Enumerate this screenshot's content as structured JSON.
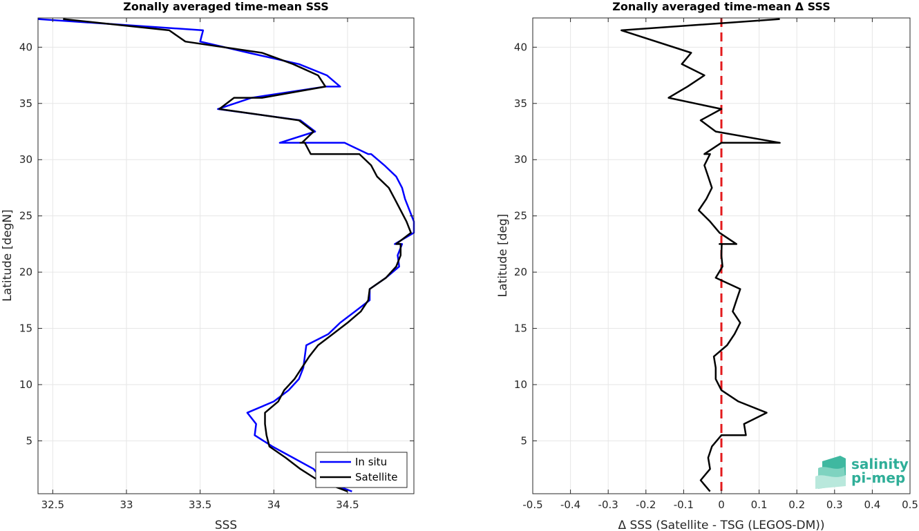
{
  "colors": {
    "in_situ": "#0000ff",
    "satellite": "#000000",
    "zero_line": "#e31a1c",
    "grid": "#e6e6e6",
    "logo": "#2fae98"
  },
  "logo": {
    "line1": "salinity",
    "line2": "pi-mep",
    "icon": "salinity-wave-logo-icon"
  },
  "chart_data": [
    {
      "type": "line",
      "title": "Zonally averaged time-mean SSS",
      "xlabel": "SSS",
      "ylabel": "Latitude [degN]",
      "xlim": [
        32.4,
        34.95
      ],
      "ylim": [
        0.3,
        42.6
      ],
      "xticks": [
        32.5,
        33,
        33.5,
        34,
        34.5
      ],
      "xticklabels": [
        "32.5",
        "33",
        "33.5",
        "34",
        "34.5"
      ],
      "yticks": [
        5,
        10,
        15,
        20,
        25,
        30,
        35,
        40
      ],
      "yticklabels": [
        "5",
        "10",
        "15",
        "20",
        "25",
        "30",
        "35",
        "40"
      ],
      "grid": true,
      "legend": {
        "location": "bottom-right",
        "entries": [
          "In situ",
          "Satellite"
        ]
      },
      "series": [
        {
          "name": "In situ",
          "x": [
            34.53,
            34.33,
            34.27,
            34.13,
            33.99,
            33.87,
            33.88,
            33.82,
            34.0,
            34.1,
            34.17,
            34.2,
            34.21,
            34.22,
            34.37,
            34.45,
            34.55,
            34.65,
            34.65,
            34.76,
            34.85,
            34.84,
            34.87,
            34.82,
            34.95,
            34.95,
            34.92,
            34.89,
            34.87,
            34.83,
            34.75,
            34.66,
            34.64,
            34.48,
            34.39,
            34.26,
            34.04,
            34.28,
            34.18,
            33.62,
            33.85,
            34.35,
            34.45,
            34.36,
            34.17,
            33.83,
            33.5,
            33.52,
            32.4
          ],
          "y": [
            0.5,
            1.5,
            2.5,
            3.5,
            4.5,
            5.5,
            6.5,
            7.5,
            8.5,
            9.5,
            10.5,
            11.5,
            12.5,
            13.5,
            14.5,
            15.5,
            16.5,
            17.5,
            18.5,
            19.5,
            20.5,
            21.5,
            22.5,
            22.5,
            23.5,
            24.5,
            25.5,
            26.5,
            27.5,
            28.5,
            29.5,
            30.5,
            30.5,
            31.5,
            31.5,
            31.5,
            31.5,
            32.5,
            33.5,
            34.5,
            35.5,
            36.5,
            36.5,
            37.5,
            38.5,
            39.5,
            40.5,
            41.5,
            42.5
          ]
        },
        {
          "name": "Satellite",
          "x": [
            34.5,
            34.3,
            34.18,
            34.08,
            33.97,
            33.95,
            33.94,
            33.94,
            34.03,
            34.07,
            34.14,
            34.19,
            34.24,
            34.3,
            34.4,
            34.5,
            34.59,
            34.64,
            34.65,
            34.76,
            34.83,
            34.86,
            34.86,
            34.83,
            34.93,
            34.9,
            34.86,
            34.82,
            34.78,
            34.7,
            34.66,
            34.58,
            34.58,
            34.25,
            34.21,
            34.18,
            34.19,
            34.27,
            34.17,
            33.63,
            33.73,
            33.92,
            34.35,
            34.3,
            34.13,
            33.92,
            33.4,
            33.29,
            32.57
          ],
          "y": [
            0.5,
            1.5,
            2.5,
            3.5,
            4.5,
            5.5,
            6.5,
            7.5,
            8.5,
            9.5,
            10.5,
            11.5,
            12.5,
            13.5,
            14.5,
            15.5,
            16.5,
            17.5,
            18.5,
            19.5,
            20.5,
            21.5,
            22.5,
            22.5,
            23.5,
            24.5,
            25.5,
            26.5,
            27.5,
            28.5,
            29.5,
            30.5,
            30.5,
            30.5,
            31.5,
            31.5,
            31.5,
            32.5,
            33.5,
            34.5,
            35.5,
            35.5,
            36.5,
            37.5,
            38.5,
            39.5,
            40.5,
            41.5,
            42.5
          ]
        }
      ]
    },
    {
      "type": "line",
      "title": "Zonally averaged time-mean Δ SSS",
      "xlabel": "Δ SSS (Satellite - TSG (LEGOS-DM))",
      "ylabel": "Latitude [deg]",
      "xlim": [
        -0.5,
        0.5
      ],
      "ylim": [
        0.3,
        42.6
      ],
      "xticks": [
        -0.5,
        -0.4,
        -0.3,
        -0.2,
        -0.1,
        0,
        0.1,
        0.2,
        0.3,
        0.4,
        0.5
      ],
      "xticklabels": [
        "-0.5",
        "-0.4",
        "-0.3",
        "-0.2",
        "-0.1",
        "0",
        "0.1",
        "0.2",
        "0.3",
        "0.4",
        "0.5"
      ],
      "yticks": [
        5,
        10,
        15,
        20,
        25,
        30,
        35,
        40
      ],
      "yticklabels": [
        "5",
        "10",
        "15",
        "20",
        "25",
        "30",
        "35",
        "40"
      ],
      "grid": true,
      "reference_line": {
        "x": 0,
        "style": "dashed"
      },
      "series": [
        {
          "name": "",
          "x": [
            -0.03,
            -0.055,
            -0.03,
            -0.035,
            -0.025,
            0.0,
            0.065,
            0.06,
            0.12,
            0.045,
            0.0,
            -0.015,
            -0.015,
            -0.02,
            0.015,
            0.035,
            0.05,
            0.03,
            0.04,
            0.05,
            -0.015,
            0.003,
            0.0,
            0.001,
            -0.005,
            0.04,
            -0.005,
            -0.03,
            -0.06,
            -0.04,
            -0.025,
            -0.035,
            -0.045,
            -0.03,
            -0.045,
            0.0,
            0.155,
            -0.015,
            -0.055,
            0.0,
            -0.14,
            -0.09,
            -0.045,
            -0.105,
            -0.08,
            -0.265,
            0.155
          ],
          "y": [
            0.5,
            1.5,
            2.5,
            3.5,
            4.5,
            5.5,
            5.5,
            6.5,
            7.5,
            8.5,
            9.5,
            10.5,
            11.5,
            12.5,
            13.5,
            14.5,
            15.5,
            16.5,
            17.5,
            18.5,
            19.5,
            20.5,
            21.5,
            22.5,
            22.5,
            22.5,
            23.5,
            24.5,
            25.5,
            26.5,
            27.5,
            28.5,
            29.5,
            30.5,
            30.5,
            31.5,
            31.5,
            32.5,
            33.5,
            34.5,
            35.5,
            36.5,
            37.5,
            38.5,
            39.5,
            41.5,
            42.5
          ]
        }
      ]
    }
  ]
}
